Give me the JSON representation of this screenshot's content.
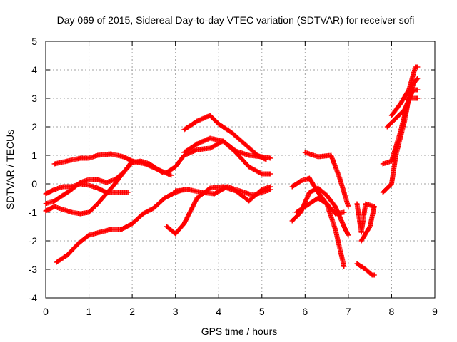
{
  "chart_data": {
    "type": "scatter",
    "title": "Day 069 of 2015, Sidereal Day-to-day VTEC variation (SDTVAR) for receiver sofi",
    "xlabel": "GPS time / hours",
    "ylabel": "SDTVAR / TECUs",
    "xlim": [
      0,
      9
    ],
    "ylim": [
      -4,
      5
    ],
    "xticks": [
      "0",
      "1",
      "2",
      "3",
      "4",
      "5",
      "6",
      "7",
      "8",
      "9"
    ],
    "yticks": [
      "-4",
      "-3",
      "-2",
      "-1",
      "0",
      "1",
      "2",
      "3",
      "4",
      "5"
    ],
    "grid": true,
    "marker": "+",
    "color": "#ff0000",
    "series": [
      {
        "x": [
          0.2,
          0.5,
          0.8,
          1.0,
          1.2,
          1.5,
          1.8,
          2.0,
          2.3,
          2.6,
          2.9
        ],
        "y": [
          0.7,
          0.8,
          0.9,
          0.9,
          1.0,
          1.05,
          0.95,
          0.8,
          0.7,
          0.5,
          0.3
        ]
      },
      {
        "x": [
          0.0,
          0.2,
          0.4,
          0.6,
          0.8,
          1.0,
          1.2,
          1.4,
          1.6,
          1.9
        ],
        "y": [
          -0.35,
          -0.2,
          -0.1,
          -0.1,
          0.0,
          -0.05,
          -0.15,
          -0.3,
          -0.3,
          -0.3
        ]
      },
      {
        "x": [
          0.0,
          0.2,
          0.4,
          0.6,
          0.8,
          1.0,
          1.2,
          1.4,
          1.6,
          1.8,
          2.0,
          2.2,
          2.4,
          2.7
        ],
        "y": [
          -0.7,
          -0.6,
          -0.4,
          -0.2,
          0.05,
          0.15,
          0.15,
          0.05,
          0.15,
          0.4,
          0.75,
          0.8,
          0.7,
          0.4
        ]
      },
      {
        "x": [
          0.0,
          0.2,
          0.4,
          0.6,
          0.8,
          1.0,
          1.2,
          1.4,
          1.6,
          1.8,
          2.0
        ],
        "y": [
          -0.95,
          -0.8,
          -0.9,
          -1.0,
          -1.05,
          -1.0,
          -0.7,
          -0.35,
          0.0,
          0.4,
          0.8
        ]
      },
      {
        "x": [
          0.25,
          0.5,
          0.75,
          1.0,
          1.25,
          1.5,
          1.75,
          2.0,
          2.25,
          2.5,
          2.75,
          3.0,
          3.2
        ],
        "y": [
          -2.75,
          -2.5,
          -2.1,
          -1.8,
          -1.7,
          -1.6,
          -1.6,
          -1.4,
          -1.05,
          -0.85,
          -0.5,
          -0.3,
          -0.2
        ]
      },
      {
        "x": [
          2.8,
          3.0,
          3.2,
          3.5,
          3.8,
          4.1,
          4.4,
          4.7,
          5.0,
          5.2
        ],
        "y": [
          0.4,
          0.6,
          1.0,
          1.2,
          1.25,
          1.5,
          1.15,
          1.0,
          0.95,
          0.9
        ]
      },
      {
        "x": [
          3.2,
          3.5,
          3.8,
          4.0,
          4.3,
          4.6,
          4.9,
          5.1
        ],
        "y": [
          1.9,
          2.2,
          2.4,
          2.1,
          1.8,
          1.4,
          1.0,
          0.85
        ]
      },
      {
        "x": [
          3.2,
          3.5,
          3.8,
          4.1,
          4.4,
          4.7,
          5.0,
          5.2
        ],
        "y": [
          1.1,
          1.4,
          1.6,
          1.5,
          1.1,
          0.6,
          0.35,
          0.35
        ]
      },
      {
        "x": [
          2.8,
          3.0,
          3.2,
          3.5,
          3.8,
          4.1,
          4.4,
          4.7,
          5.0,
          5.2
        ],
        "y": [
          -1.5,
          -1.75,
          -1.4,
          -0.5,
          -0.15,
          -0.1,
          -0.25,
          -0.6,
          -0.2,
          -0.1
        ]
      },
      {
        "x": [
          3.0,
          3.3,
          3.6,
          3.9,
          4.2,
          4.5,
          4.8,
          5.0,
          5.2
        ],
        "y": [
          -0.25,
          -0.2,
          -0.3,
          -0.35,
          -0.1,
          -0.25,
          -0.4,
          -0.3,
          -0.2
        ]
      },
      {
        "x": [
          5.7,
          5.9,
          6.1,
          6.3,
          6.5,
          6.7,
          6.9,
          7.0
        ],
        "y": [
          -1.3,
          -1.0,
          -0.3,
          -0.15,
          -0.4,
          -0.8,
          -1.5,
          -1.8
        ]
      },
      {
        "x": [
          5.7,
          5.9,
          6.1,
          6.3,
          6.5,
          6.7,
          6.9
        ],
        "y": [
          -0.1,
          0.1,
          0.2,
          -0.3,
          -0.7,
          -1.6,
          -2.9
        ]
      },
      {
        "x": [
          6.0,
          6.3,
          6.6,
          6.8,
          7.0
        ],
        "y": [
          1.1,
          0.95,
          1.0,
          0.2,
          -0.8
        ]
      },
      {
        "x": [
          5.8,
          6.0,
          6.3,
          6.5,
          6.7,
          6.9
        ],
        "y": [
          -1.0,
          -0.8,
          -0.5,
          -0.7,
          -1.05,
          -1.0
        ]
      },
      {
        "x": [
          7.2,
          7.4,
          7.55,
          7.6
        ],
        "y": [
          -2.8,
          -3.0,
          -3.2,
          -3.2
        ]
      },
      {
        "x": [
          7.2,
          7.3,
          7.4,
          7.6
        ],
        "y": [
          -0.7,
          -1.7,
          -0.7,
          -0.8
        ]
      },
      {
        "x": [
          7.3,
          7.5,
          7.6
        ],
        "y": [
          -2.0,
          -1.5,
          -0.8
        ]
      },
      {
        "x": [
          7.8,
          8.0,
          8.1,
          8.3,
          8.4,
          8.5,
          8.6
        ],
        "y": [
          -0.3,
          0.0,
          1.0,
          2.2,
          3.0,
          3.5,
          3.7
        ]
      },
      {
        "x": [
          7.8,
          8.0,
          8.2,
          8.4,
          8.6
        ],
        "y": [
          0.7,
          0.8,
          1.8,
          3.0,
          3.0
        ]
      },
      {
        "x": [
          7.9,
          8.1,
          8.3,
          8.5,
          8.6
        ],
        "y": [
          2.0,
          2.3,
          2.6,
          3.3,
          3.3
        ]
      },
      {
        "x": [
          8.0,
          8.2,
          8.4,
          8.55,
          8.6
        ],
        "y": [
          2.4,
          2.8,
          3.3,
          4.1,
          4.1
        ]
      }
    ]
  }
}
